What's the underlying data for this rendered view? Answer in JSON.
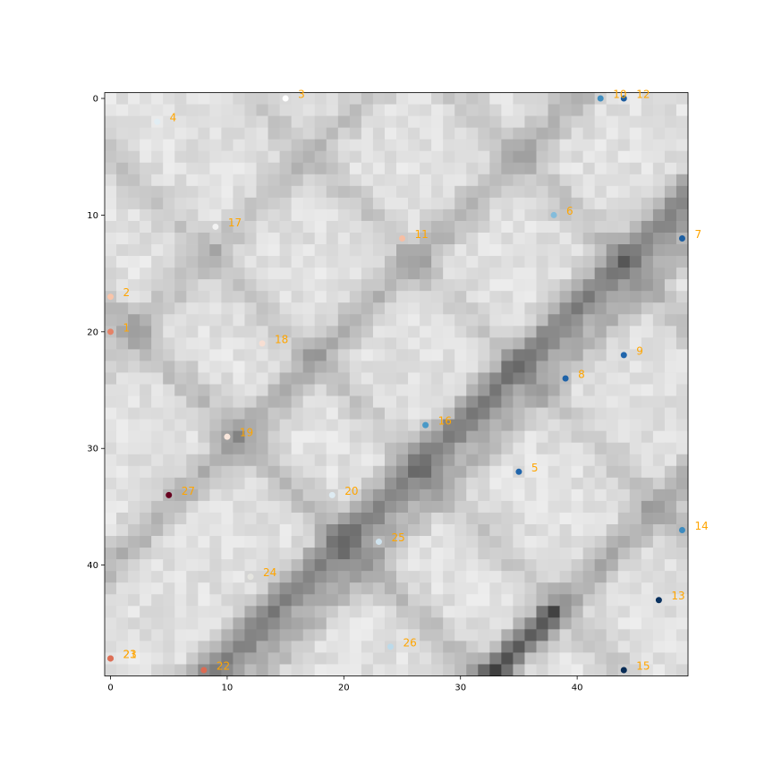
{
  "chart_data": {
    "type": "heatmap",
    "title": "",
    "xlabel": "",
    "ylabel": "",
    "xlim": [
      -0.5,
      49.5
    ],
    "ylim": [
      49.5,
      -0.5
    ],
    "x_ticks": [
      0,
      10,
      20,
      30,
      40
    ],
    "y_ticks": [
      0,
      10,
      20,
      30,
      40
    ],
    "grid": false,
    "colormap": "greys",
    "heatmap_shape": [
      50,
      50
    ],
    "heatmap_description_value_range": [
      0.0,
      1.0
    ],
    "label_color": "#ffa500",
    "points": [
      {
        "label": "1",
        "x": 0,
        "y": 20,
        "color": "#e58267"
      },
      {
        "label": "2",
        "x": 0,
        "y": 17,
        "color": "#f9c4a9"
      },
      {
        "label": "3",
        "x": 15,
        "y": 0,
        "color": "#ffffff"
      },
      {
        "label": "4",
        "x": 4,
        "y": 2,
        "color": "#e1edf3"
      },
      {
        "label": "5",
        "x": 35,
        "y": 32,
        "color": "#2065ab"
      },
      {
        "label": "6",
        "x": 38,
        "y": 10,
        "color": "#84bcdb"
      },
      {
        "label": "7",
        "x": 49,
        "y": 12,
        "color": "#1d5fa2"
      },
      {
        "label": "8",
        "x": 39,
        "y": 24,
        "color": "#1f63a8"
      },
      {
        "label": "9",
        "x": 44,
        "y": 22,
        "color": "#2166ac"
      },
      {
        "label": "10",
        "x": 42,
        "y": 0,
        "color": "#3f8ec0"
      },
      {
        "label": "11",
        "x": 25,
        "y": 12,
        "color": "#f7bea3"
      },
      {
        "label": "12",
        "x": 44,
        "y": 0,
        "color": "#1c5c9f"
      },
      {
        "label": "13",
        "x": 47,
        "y": 43,
        "color": "#0a3260"
      },
      {
        "label": "14",
        "x": 49,
        "y": 37,
        "color": "#3d8bbf"
      },
      {
        "label": "15",
        "x": 44,
        "y": 49,
        "color": "#082c56"
      },
      {
        "label": "16",
        "x": 27,
        "y": 28,
        "color": "#4a99c7"
      },
      {
        "label": "17",
        "x": 9,
        "y": 11,
        "color": "#f2f2f2"
      },
      {
        "label": "18",
        "x": 13,
        "y": 21,
        "color": "#f7ded2"
      },
      {
        "label": "19",
        "x": 10,
        "y": 29,
        "color": "#f9e6db"
      },
      {
        "label": "20",
        "x": 19,
        "y": 34,
        "color": "#deebf2"
      },
      {
        "label": "21",
        "x": 0,
        "y": 48,
        "color": "#dd6f56"
      },
      {
        "label": "22",
        "x": 8,
        "y": 49,
        "color": "#dc6b53"
      },
      {
        "label": "23",
        "x": 0,
        "y": 48,
        "color": "#dd6f56"
      },
      {
        "label": "24",
        "x": 12,
        "y": 41,
        "color": "#e5e5e0"
      },
      {
        "label": "25",
        "x": 23,
        "y": 38,
        "color": "#cfe3ee"
      },
      {
        "label": "26",
        "x": 24,
        "y": 47,
        "color": "#bcdaea"
      },
      {
        "label": "27",
        "x": 5,
        "y": 34,
        "color": "#67001f"
      }
    ]
  }
}
